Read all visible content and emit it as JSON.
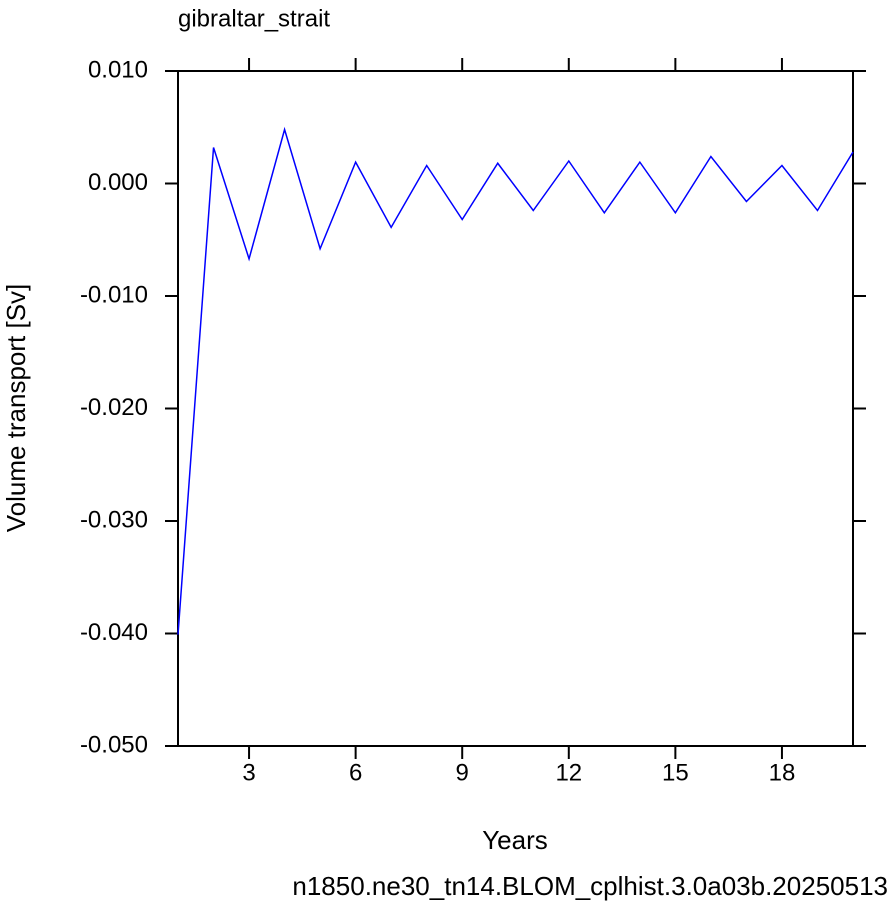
{
  "chart_data": {
    "type": "line",
    "title": "gibraltar_strait",
    "xlabel": "Years",
    "ylabel": "Volume transport [Sv]",
    "footer": "n1850.ne30_tn14.BLOM_cplhist.3.0a03b.20250513",
    "footer_color": "#0000ff",
    "x": [
      1,
      2,
      3,
      4,
      5,
      6,
      7,
      8,
      9,
      10,
      11,
      12,
      13,
      14,
      15,
      16,
      17,
      18,
      19,
      20
    ],
    "series": [
      {
        "color": "#0000ff",
        "values": [
          -0.0401,
          0.0032,
          -0.0067,
          0.0048,
          -0.0058,
          0.0019,
          -0.0039,
          0.0016,
          -0.0032,
          0.0018,
          -0.0024,
          0.002,
          -0.0026,
          0.0019,
          -0.0026,
          0.0024,
          -0.0016,
          0.0016,
          -0.0024,
          0.0028
        ]
      }
    ],
    "xlim": [
      1,
      20
    ],
    "xticks": [
      3,
      6,
      9,
      12,
      15,
      18
    ],
    "ylim": [
      -0.05,
      0.01
    ],
    "yticks": [
      {
        "value": -0.05,
        "label": "-0.050"
      },
      {
        "value": -0.04,
        "label": "-0.040"
      },
      {
        "value": -0.03,
        "label": "-0.030"
      },
      {
        "value": -0.02,
        "label": "-0.020"
      },
      {
        "value": -0.01,
        "label": "-0.010"
      },
      {
        "value": 0,
        "label": "0.000"
      },
      {
        "value": 0.01,
        "label": "0.010"
      }
    ],
    "grid": false
  }
}
